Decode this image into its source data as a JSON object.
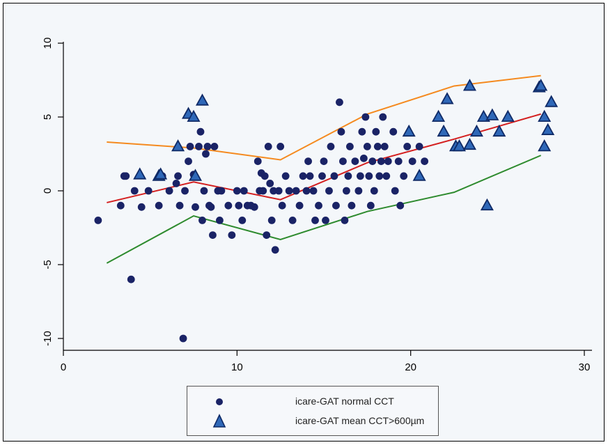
{
  "colors": {
    "background": "#f4f7fa",
    "normal_marker": "#1a2366",
    "high_marker_fill": "#2f68b8",
    "high_marker_stroke": "#0f2a66",
    "orange_line": "#f58a1f",
    "red_line": "#d42020",
    "green_line": "#2e8b2e"
  },
  "legend": {
    "normal_label": "icare-GAT normal CCT",
    "high_label": "icare-GAT mean CCT>600µm"
  },
  "chart_data": {
    "type": "scatter",
    "xlim": [
      0,
      30
    ],
    "ylim": [
      -10,
      10
    ],
    "x_ticks": [
      0,
      10,
      20,
      30
    ],
    "y_ticks": [
      -10,
      -5,
      0,
      5,
      10
    ],
    "x_tick_labels": [
      "0",
      "10",
      "20",
      "30"
    ],
    "y_tick_labels": [
      "-10",
      "-5",
      "0",
      "5",
      "10"
    ],
    "grid": false,
    "legend_position": "bottom",
    "series": [
      {
        "name": "icare-GAT normal CCT",
        "marker": "circle",
        "points": [
          [
            2,
            -2
          ],
          [
            3.3,
            -1
          ],
          [
            3.5,
            1
          ],
          [
            3.6,
            1
          ],
          [
            3.9,
            -6
          ],
          [
            4.1,
            0
          ],
          [
            4.5,
            -1.1
          ],
          [
            4.9,
            0
          ],
          [
            5.5,
            -1
          ],
          [
            5.7,
            1
          ],
          [
            6.1,
            0
          ],
          [
            6.5,
            0.5
          ],
          [
            6.6,
            1
          ],
          [
            6.7,
            -1
          ],
          [
            6.9,
            -10
          ],
          [
            7,
            0
          ],
          [
            7.2,
            2
          ],
          [
            7.3,
            3
          ],
          [
            7.5,
            1.1
          ],
          [
            7.6,
            -1.1
          ],
          [
            7.8,
            3
          ],
          [
            7.9,
            4
          ],
          [
            8,
            -2
          ],
          [
            8.1,
            0
          ],
          [
            8.2,
            2.5
          ],
          [
            8.3,
            3
          ],
          [
            8.4,
            -1
          ],
          [
            8.5,
            -1.1
          ],
          [
            8.6,
            -3
          ],
          [
            8.7,
            3
          ],
          [
            8.9,
            0
          ],
          [
            9,
            -2
          ],
          [
            9.1,
            0
          ],
          [
            9.5,
            -1
          ],
          [
            9.7,
            -3
          ],
          [
            10,
            0
          ],
          [
            10.1,
            -1
          ],
          [
            10.3,
            -2
          ],
          [
            10.4,
            0
          ],
          [
            10.6,
            -1
          ],
          [
            10.8,
            -1
          ],
          [
            11,
            -1.1
          ],
          [
            11.2,
            2
          ],
          [
            11.3,
            0
          ],
          [
            11.4,
            1.2
          ],
          [
            11.5,
            0
          ],
          [
            11.6,
            1
          ],
          [
            11.7,
            -3
          ],
          [
            11.8,
            3
          ],
          [
            11.9,
            0.5
          ],
          [
            12,
            -2
          ],
          [
            12.1,
            0
          ],
          [
            12.2,
            -4
          ],
          [
            12.4,
            0
          ],
          [
            12.5,
            3
          ],
          [
            12.6,
            -1
          ],
          [
            12.8,
            1
          ],
          [
            13,
            0
          ],
          [
            13.2,
            -2
          ],
          [
            13.4,
            0
          ],
          [
            13.6,
            -1
          ],
          [
            13.8,
            1
          ],
          [
            14,
            0
          ],
          [
            14.1,
            2
          ],
          [
            14.2,
            1
          ],
          [
            14.4,
            0
          ],
          [
            14.5,
            -2
          ],
          [
            14.7,
            -1
          ],
          [
            14.9,
            1
          ],
          [
            15,
            2
          ],
          [
            15.1,
            -2
          ],
          [
            15.3,
            0
          ],
          [
            15.4,
            3
          ],
          [
            15.6,
            1
          ],
          [
            15.7,
            -1
          ],
          [
            15.9,
            6
          ],
          [
            16,
            4
          ],
          [
            16.1,
            2
          ],
          [
            16.2,
            -2
          ],
          [
            16.3,
            0
          ],
          [
            16.4,
            1
          ],
          [
            16.5,
            3
          ],
          [
            16.6,
            -1
          ],
          [
            16.8,
            2
          ],
          [
            17,
            0
          ],
          [
            17.1,
            1
          ],
          [
            17.2,
            4
          ],
          [
            17.3,
            2.2
          ],
          [
            17.4,
            5
          ],
          [
            17.5,
            3
          ],
          [
            17.6,
            1
          ],
          [
            17.7,
            -1
          ],
          [
            17.8,
            2
          ],
          [
            17.9,
            0
          ],
          [
            18,
            4
          ],
          [
            18.1,
            3
          ],
          [
            18.2,
            1
          ],
          [
            18.3,
            2
          ],
          [
            18.4,
            5
          ],
          [
            18.5,
            3
          ],
          [
            18.6,
            1
          ],
          [
            18.7,
            2
          ],
          [
            19,
            4
          ],
          [
            19.1,
            0
          ],
          [
            19.3,
            2
          ],
          [
            19.4,
            -1
          ],
          [
            19.6,
            1
          ],
          [
            19.8,
            3
          ],
          [
            20.1,
            2
          ],
          [
            20.5,
            3
          ],
          [
            20.8,
            2
          ]
        ]
      },
      {
        "name": "icare-GAT mean CCT>600µm",
        "marker": "triangle",
        "points": [
          [
            4.4,
            1.1
          ],
          [
            5.5,
            1
          ],
          [
            5.6,
            1.1
          ],
          [
            6.6,
            3
          ],
          [
            7.2,
            5.2
          ],
          [
            7.5,
            5
          ],
          [
            7.6,
            1
          ],
          [
            8,
            6.1
          ],
          [
            19.9,
            4
          ],
          [
            20.5,
            1
          ],
          [
            21.6,
            5
          ],
          [
            21.9,
            4
          ],
          [
            22.1,
            6.2
          ],
          [
            22.6,
            3
          ],
          [
            22.8,
            3
          ],
          [
            23.4,
            7.1
          ],
          [
            23.4,
            3.1
          ],
          [
            23.8,
            4
          ],
          [
            24.2,
            5
          ],
          [
            24.4,
            -1
          ],
          [
            24.7,
            5.1
          ],
          [
            25.1,
            4
          ],
          [
            25.6,
            5
          ],
          [
            27.4,
            7
          ],
          [
            27.5,
            7.1
          ],
          [
            27.7,
            5
          ],
          [
            27.7,
            3
          ],
          [
            27.9,
            4.1
          ],
          [
            28.1,
            6
          ]
        ]
      },
      {
        "name": "",
        "type": "line",
        "color": "#f58a1f",
        "x": [
          2.5,
          7.5,
          12.5,
          17.5,
          22.5,
          27.5
        ],
        "y": [
          3.3,
          2.9,
          2.1,
          5.2,
          7.1,
          7.8
        ]
      },
      {
        "name": "",
        "type": "line",
        "color": "#d42020",
        "x": [
          2.5,
          7.5,
          12.5,
          17.5,
          22.5,
          27.5
        ],
        "y": [
          -0.8,
          0.6,
          -0.6,
          1.9,
          3.5,
          5.2
        ]
      },
      {
        "name": "",
        "type": "line",
        "color": "#2e8b2e",
        "x": [
          2.5,
          7.5,
          12.5,
          17.5,
          22.5,
          27.5
        ],
        "y": [
          -4.9,
          -1.7,
          -3.3,
          -1.4,
          -0.1,
          2.4
        ]
      }
    ]
  }
}
